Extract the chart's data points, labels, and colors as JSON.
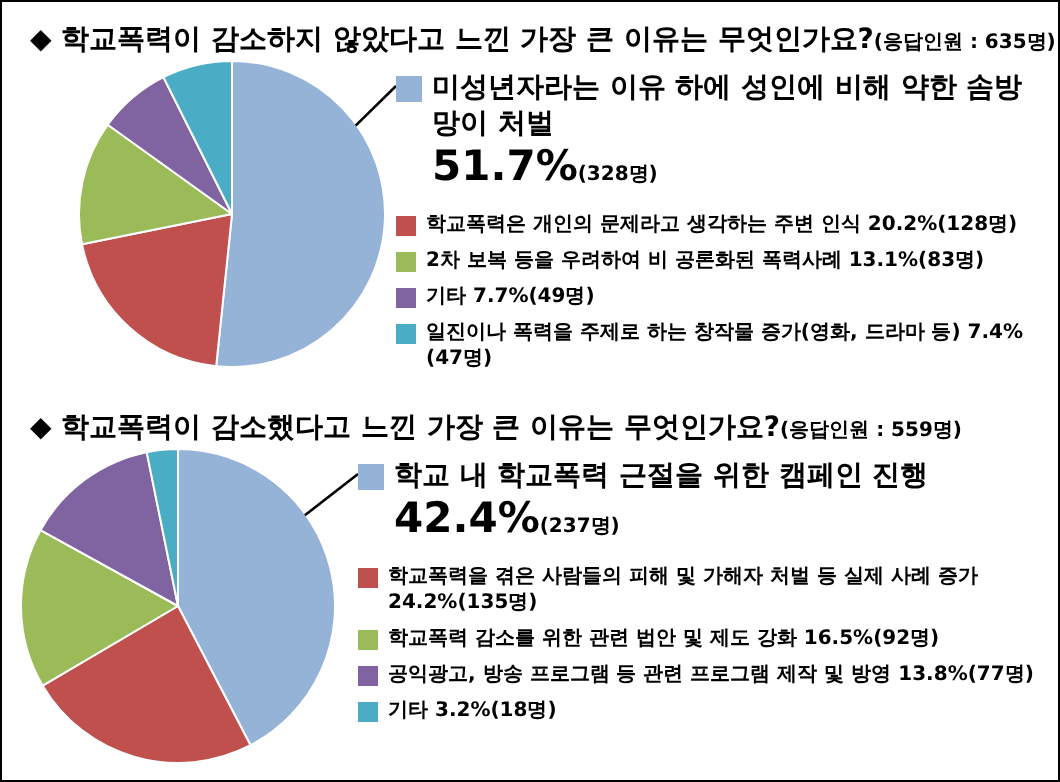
{
  "chart_data": [
    {
      "type": "pie",
      "title": "◆ 학교폭력이 감소하지 않았다고 느낀 가장 큰 이유는 무엇인가요?",
      "subtitle": "(응답인원 : 635명)",
      "legend": "right",
      "categories": [
        "미성년자라는 이유 하에 성인에 비해 약한 솜방망이 처벌",
        "학교폭력은 개인의 문제라고 생각하는 주변 인식",
        "2차 보복 등을 우려하여 비 공론화된 폭력사례",
        "기타",
        "일진이나 폭력을 주제로 하는 창작물 증가(영화, 드라마 등)"
      ],
      "values": [
        51.7,
        20.2,
        13.1,
        7.7,
        7.4
      ],
      "colors": [
        "#95b3d7",
        "#c0504d",
        "#9bbb59",
        "#8064a2",
        "#4bacc6"
      ],
      "value_labels": [
        "51.7%(328명)",
        "20.2%(128명)",
        "13.1%(83명)",
        "7.7%(49명)",
        "7.4%(47명)"
      ]
    },
    {
      "type": "pie",
      "title": "◆ 학교폭력이 감소했다고 느낀 가장 큰 이유는 무엇인가요?",
      "subtitle": "(응답인원 : 559명)",
      "legend": "right",
      "categories": [
        "학교 내 학교폭력 근절을 위한 캠페인 진행",
        "학교폭력을 겪은 사람들의 피해 및 가해자 처벌 등 실제 사례 증가",
        "학교폭력 감소를 위한 관련 법안 및 제도 강화",
        "공익광고, 방송 프로그램 등 관련 프로그램 제작 및 방영",
        "기타"
      ],
      "values": [
        42.4,
        24.2,
        16.5,
        13.8,
        3.2
      ],
      "colors": [
        "#95b3d7",
        "#c0504d",
        "#9bbb59",
        "#8064a2",
        "#4bacc6"
      ],
      "value_labels": [
        "42.4%(237명)",
        "24.2%(135명)",
        "16.5%(92명)",
        "13.8%(77명)",
        "3.2%(18명)"
      ]
    }
  ]
}
